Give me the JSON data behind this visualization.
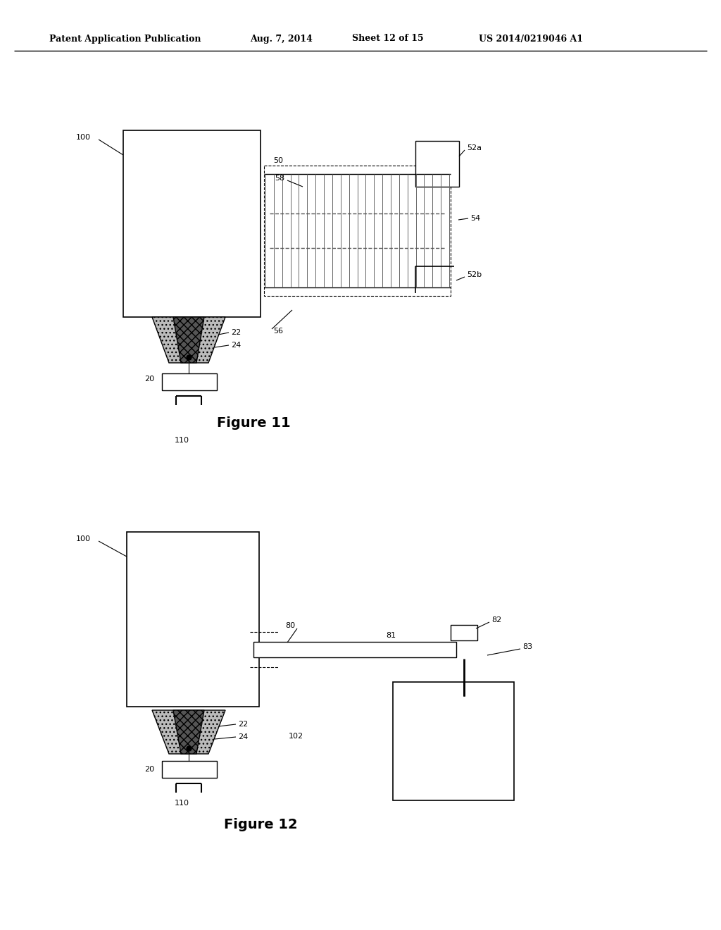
{
  "bg_color": "#ffffff",
  "header_text": "Patent Application Publication",
  "header_date": "Aug. 7, 2014",
  "header_sheet": "Sheet 12 of 15",
  "header_patent": "US 2014/0219046 A1",
  "fig11_title": "Figure 11",
  "fig12_title": "Figure 12"
}
